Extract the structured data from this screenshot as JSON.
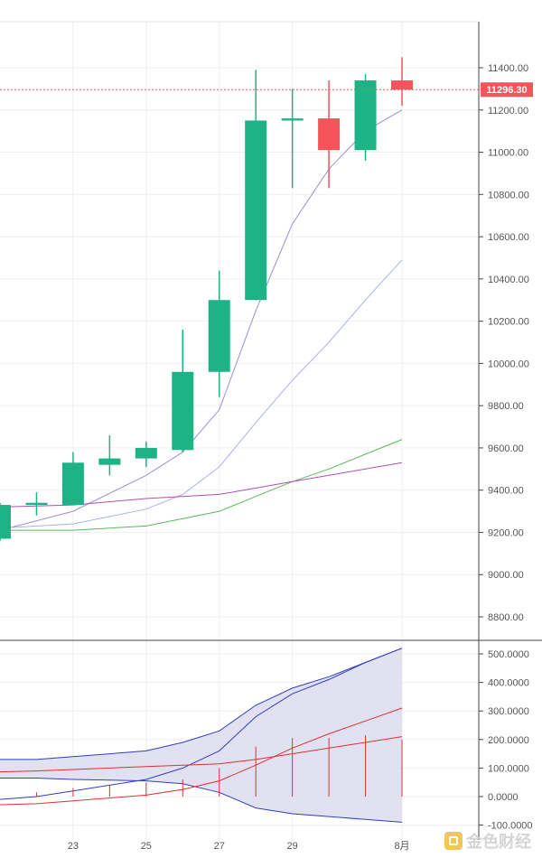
{
  "colors": {
    "up": "#1eb287",
    "down": "#f6535a",
    "ma_short": "#9b8fd8",
    "ma_mid": "#a8b4e6",
    "ma_long": "#5cb85c",
    "ma_slow": "#b050b0",
    "boll_line": "#2f3fbf",
    "boll_fill": "#dcdcf0",
    "macd_line": "#e03030",
    "price_line": "#f6535a"
  },
  "current_price": "11296.30",
  "chart_data": [
    {
      "type": "candlestick",
      "price_axis": {
        "min": 8800,
        "max": 11400,
        "ticks": [
          "11400.00",
          "11200.00",
          "11000.00",
          "10800.00",
          "10600.00",
          "10400.00",
          "10200.00",
          "10000.00",
          "9800.00",
          "9600.00",
          "9400.00",
          "9200.00",
          "9000.00",
          "8800.00"
        ]
      },
      "x_ticks": [
        "23",
        "25",
        "27",
        "29",
        "8月"
      ],
      "candles": [
        {
          "x": 21.0,
          "open": 9170,
          "close": 9330,
          "high": 9340,
          "low": 9160
        },
        {
          "x": 22.0,
          "open": 9330,
          "close": 9340,
          "high": 9390,
          "low": 9280
        },
        {
          "x": 23.0,
          "open": 9330,
          "close": 9530,
          "high": 9580,
          "low": 9330
        },
        {
          "x": 24.0,
          "open": 9520,
          "close": 9550,
          "high": 9660,
          "low": 9470
        },
        {
          "x": 25.0,
          "open": 9550,
          "close": 9600,
          "high": 9630,
          "low": 9510
        },
        {
          "x": 26.0,
          "open": 9590,
          "close": 9960,
          "high": 10160,
          "low": 9580
        },
        {
          "x": 27.0,
          "open": 9960,
          "close": 10300,
          "high": 10440,
          "low": 9840
        },
        {
          "x": 28.0,
          "open": 10300,
          "close": 11150,
          "high": 11390,
          "low": 10300
        },
        {
          "x": 29.0,
          "open": 11150,
          "close": 11160,
          "high": 11300,
          "low": 10830
        },
        {
          "x": 30.0,
          "open": 11160,
          "close": 11010,
          "high": 11340,
          "low": 10830
        },
        {
          "x": 31.0,
          "open": 11010,
          "close": 11340,
          "high": 11370,
          "low": 10960
        },
        {
          "x": 32.0,
          "open": 11340,
          "close": 11296.3,
          "high": 11450,
          "low": 11220
        }
      ],
      "moving_averages": [
        {
          "color_key": "ma_short",
          "points": [
            [
              21,
              9210
            ],
            [
              23,
              9300
            ],
            [
              25,
              9470
            ],
            [
              26,
              9580
            ],
            [
              27,
              9780
            ],
            [
              28,
              10250
            ],
            [
              29,
              10660
            ],
            [
              30,
              10920
            ],
            [
              31,
              11100
            ],
            [
              32,
              11200
            ]
          ]
        },
        {
          "color_key": "ma_mid",
          "points": [
            [
              21,
              9220
            ],
            [
              23,
              9240
            ],
            [
              25,
              9310
            ],
            [
              26,
              9380
            ],
            [
              27,
              9510
            ],
            [
              28,
              9720
            ],
            [
              29,
              9920
            ],
            [
              30,
              10100
            ],
            [
              31,
              10300
            ],
            [
              32,
              10490
            ]
          ]
        },
        {
          "color_key": "ma_long",
          "points": [
            [
              21,
              9210
            ],
            [
              23,
              9210
            ],
            [
              25,
              9230
            ],
            [
              27,
              9300
            ],
            [
              28,
              9370
            ],
            [
              29,
              9440
            ],
            [
              30,
              9500
            ],
            [
              31,
              9570
            ],
            [
              32,
              9640
            ]
          ]
        },
        {
          "color_key": "ma_slow",
          "points": [
            [
              21,
              9320
            ],
            [
              23,
              9330
            ],
            [
              25,
              9360
            ],
            [
              27,
              9380
            ],
            [
              28,
              9410
            ],
            [
              29,
              9440
            ],
            [
              30,
              9470
            ],
            [
              31,
              9500
            ],
            [
              32,
              9530
            ]
          ]
        }
      ]
    },
    {
      "type": "indicator",
      "y_axis": {
        "min": -100,
        "max": 500,
        "ticks": [
          "500.0000",
          "400.0000",
          "300.0000",
          "200.0000",
          "100.0000",
          "0.0000",
          "-100.0000"
        ]
      },
      "boll_upper": [
        [
          20.5,
          130
        ],
        [
          22,
          130
        ],
        [
          23,
          140
        ],
        [
          25,
          160
        ],
        [
          26,
          190
        ],
        [
          27,
          230
        ],
        [
          28,
          320
        ],
        [
          29,
          380
        ],
        [
          30,
          420
        ],
        [
          31,
          470
        ],
        [
          32,
          520
        ]
      ],
      "boll_middle": [
        [
          20.5,
          -15
        ],
        [
          22,
          0
        ],
        [
          23,
          20
        ],
        [
          25,
          60
        ],
        [
          26,
          100
        ],
        [
          27,
          160
        ],
        [
          28,
          280
        ],
        [
          29,
          360
        ],
        [
          30,
          410
        ],
        [
          31,
          470
        ],
        [
          32,
          520
        ]
      ],
      "boll_lower": [
        [
          20.5,
          65
        ],
        [
          22,
          65
        ],
        [
          23,
          60
        ],
        [
          25,
          55
        ],
        [
          26,
          45
        ],
        [
          27,
          15
        ],
        [
          28,
          -40
        ],
        [
          29,
          -60
        ],
        [
          30,
          -70
        ],
        [
          31,
          -80
        ],
        [
          32,
          -90
        ]
      ],
      "line_fast": [
        [
          20.5,
          85
        ],
        [
          22,
          90
        ],
        [
          23,
          95
        ],
        [
          25,
          105
        ],
        [
          26,
          110
        ],
        [
          27,
          115
        ],
        [
          28,
          130
        ],
        [
          29,
          150
        ],
        [
          30,
          170
        ],
        [
          31,
          190
        ],
        [
          32,
          210
        ]
      ],
      "line_slow": [
        [
          20.5,
          -30
        ],
        [
          22,
          -25
        ],
        [
          23,
          -15
        ],
        [
          25,
          5
        ],
        [
          26,
          25
        ],
        [
          27,
          55
        ],
        [
          28,
          110
        ],
        [
          29,
          170
        ],
        [
          30,
          220
        ],
        [
          31,
          265
        ],
        [
          32,
          310
        ]
      ],
      "bars": [
        {
          "x": 22,
          "value": 15
        },
        {
          "x": 23,
          "value": 30
        },
        {
          "x": 24,
          "value": 40
        },
        {
          "x": 25,
          "value": 50
        },
        {
          "x": 26,
          "value": 60
        },
        {
          "x": 27,
          "value": 100
        },
        {
          "x": 28,
          "value": 175
        },
        {
          "x": 29,
          "value": 205
        },
        {
          "x": 30,
          "value": 205
        },
        {
          "x": 31,
          "value": 215
        },
        {
          "x": 32,
          "value": 200
        }
      ]
    }
  ],
  "watermark": {
    "text": "金色财经"
  }
}
